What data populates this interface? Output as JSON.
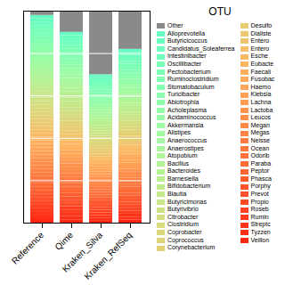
{
  "chart_data": {
    "type": "bar",
    "stacked": true,
    "title": "OTU",
    "categories": [
      "Reference",
      "Qime",
      "Kraken_Silva",
      "Kraken_RefSeq"
    ],
    "series": [
      {
        "name": "Veillon",
        "color": "#ff2613",
        "values": [
          0.01689655172413793,
          0.015517241379310345,
          0.01206896551724138,
          0.01413793103448276
        ]
      },
      {
        "name": "Tyzzen",
        "color": "#ff2f18",
        "values": [
          0.01689655172413793,
          0.015517241379310345,
          0.01206896551724138,
          0.01413793103448276
        ]
      },
      {
        "name": "Streptc",
        "color": "#ff351b",
        "values": [
          0.01689655172413793,
          0.015517241379310345,
          0.01206896551724138,
          0.01413793103448276
        ]
      },
      {
        "name": "Rumin",
        "color": "#ff3b1e",
        "values": [
          0.01689655172413793,
          0.015517241379310345,
          0.01206896551724138,
          0.01413793103448276
        ]
      },
      {
        "name": "Roseb",
        "color": "#ff4121",
        "values": [
          0.01689655172413793,
          0.015517241379310345,
          0.01206896551724138,
          0.01413793103448276
        ]
      },
      {
        "name": "Propio",
        "color": "#ff4a26",
        "values": [
          0.01689655172413793,
          0.015517241379310345,
          0.01206896551724138,
          0.01413793103448276
        ]
      },
      {
        "name": "Prevot",
        "color": "#ff5029",
        "values": [
          0.01689655172413793,
          0.015517241379310345,
          0.01206896551724138,
          0.01413793103448276
        ]
      },
      {
        "name": "Porphy",
        "color": "#ff562c",
        "values": [
          0.01689655172413793,
          0.015517241379310345,
          0.01206896551724138,
          0.01413793103448276
        ]
      },
      {
        "name": "Phasca",
        "color": "#ff5c2f",
        "values": [
          0.01689655172413793,
          0.015517241379310345,
          0.01206896551724138,
          0.01413793103448276
        ]
      },
      {
        "name": "Peptor",
        "color": "#ff6533",
        "values": [
          0.01689655172413793,
          0.015517241379310345,
          0.01206896551724138,
          0.01413793103448276
        ]
      },
      {
        "name": "Paraba",
        "color": "#ff6b37",
        "values": [
          0.01689655172413793,
          0.015517241379310345,
          0.01206896551724138,
          0.01413793103448276
        ]
      },
      {
        "name": "Odorib",
        "color": "#ff703a",
        "values": [
          0.01689655172413793,
          0.015517241379310345,
          0.01206896551724138,
          0.01413793103448276
        ]
      },
      {
        "name": "Ocean",
        "color": "#ff763d",
        "values": [
          0.01689655172413793,
          0.015517241379310345,
          0.01206896551724138,
          0.01413793103448276
        ]
      },
      {
        "name": "Neisse",
        "color": "#ff7b40",
        "values": [
          0.01689655172413793,
          0.015517241379310345,
          0.01206896551724138,
          0.01413793103448276
        ]
      },
      {
        "name": "Megas",
        "color": "#ff8444",
        "values": [
          0.01689655172413793,
          0.015517241379310345,
          0.01206896551724138,
          0.01413793103448276
        ]
      },
      {
        "name": "Megan",
        "color": "#ff8947",
        "values": [
          0.01689655172413793,
          0.015517241379310345,
          0.01206896551724138,
          0.01413793103448276
        ]
      },
      {
        "name": "Leucos",
        "color": "#ff8e4a",
        "values": [
          0.01689655172413793,
          0.015517241379310345,
          0.01206896551724138,
          0.01413793103448276
        ]
      },
      {
        "name": "Lactoba",
        "color": "#ff934d",
        "values": [
          0.01689655172413793,
          0.015517241379310345,
          0.01206896551724138,
          0.01413793103448276
        ]
      },
      {
        "name": "Lachna",
        "color": "#ff9b52",
        "values": [
          0.01689655172413793,
          0.015517241379310345,
          0.01206896551724138,
          0.01413793103448276
        ]
      },
      {
        "name": "Klebsia",
        "color": "#ffa055",
        "values": [
          0.01689655172413793,
          0.015517241379310345,
          0.01206896551724138,
          0.01413793103448276
        ]
      },
      {
        "name": "Haemo",
        "color": "#ffa558",
        "values": [
          0.01689655172413793,
          0.015517241379310345,
          0.01206896551724138,
          0.01413793103448276
        ]
      },
      {
        "name": "Fusobac",
        "color": "#ffa95b",
        "values": [
          0.01689655172413793,
          0.015517241379310345,
          0.01206896551724138,
          0.01413793103448276
        ]
      },
      {
        "name": "Faecali",
        "color": "#ffb05f",
        "values": [
          0.01689655172413793,
          0.015517241379310345,
          0.01206896551724138,
          0.01413793103448276
        ]
      },
      {
        "name": "Eubacte",
        "color": "#feb562",
        "values": [
          0.01689655172413793,
          0.015517241379310345,
          0.01206896551724138,
          0.01413793103448276
        ]
      },
      {
        "name": "Esche",
        "color": "#fab965",
        "values": [
          0.01689655172413793,
          0.015517241379310345,
          0.01206896551724138,
          0.01413793103448276
        ]
      },
      {
        "name": "Entero",
        "color": "#f6be68",
        "values": [
          0.01689655172413793,
          0.015517241379310345,
          0.01206896551724138,
          0.01413793103448276
        ]
      },
      {
        "name": "Entero",
        "color": "#f0c46c",
        "values": [
          0.01689655172413793,
          0.015517241379310345,
          0.01206896551724138,
          0.01413793103448276
        ]
      },
      {
        "name": "Dialiste",
        "color": "#ecc86f",
        "values": [
          0.01689655172413793,
          0.015517241379310345,
          0.01206896551724138,
          0.01413793103448276
        ]
      },
      {
        "name": "Desulfo",
        "color": "#e8cb72",
        "values": [
          0.01689655172413793,
          0.015517241379310345,
          0.01206896551724138,
          0.01413793103448276
        ]
      },
      {
        "name": "Corynebacterium",
        "color": "#e4cf74",
        "values": [
          0.01689655172413793,
          0.015517241379310345,
          0.01206896551724138,
          0.01413793103448276
        ]
      },
      {
        "name": "Coprococcus",
        "color": "#ded579",
        "values": [
          0.01689655172413793,
          0.015517241379310345,
          0.01206896551724138,
          0.01413793103448276
        ]
      },
      {
        "name": "Coprobacter",
        "color": "#dad87b",
        "values": [
          0.01689655172413793,
          0.015517241379310345,
          0.01206896551724138,
          0.01413793103448276
        ]
      },
      {
        "name": "Clostridium",
        "color": "#d6db7e",
        "values": [
          0.01689655172413793,
          0.015517241379310345,
          0.01206896551724138,
          0.01413793103448276
        ]
      },
      {
        "name": "Citrobacter",
        "color": "#d2de81",
        "values": [
          0.01689655172413793,
          0.015517241379310345,
          0.01206896551724138,
          0.01413793103448276
        ]
      },
      {
        "name": "Butyrivibrio",
        "color": "#cce385",
        "values": [
          0.01689655172413793,
          0.015517241379310345,
          0.01206896551724138,
          0.01413793103448276
        ]
      },
      {
        "name": "Butyricimonas",
        "color": "#c8e688",
        "values": [
          0.01689655172413793,
          0.015517241379310345,
          0.01206896551724138,
          0.01413793103448276
        ]
      },
      {
        "name": "Blautia",
        "color": "#c4e88a",
        "values": [
          0.01689655172413793,
          0.015517241379310345,
          0.01206896551724138,
          0.01413793103448276
        ]
      },
      {
        "name": "Bifidobacterium",
        "color": "#c0eb8d",
        "values": [
          0.01689655172413793,
          0.015517241379310345,
          0.01206896551724138,
          0.01413793103448276
        ]
      },
      {
        "name": "Barnesiella",
        "color": "#baee91",
        "values": [
          0.01689655172413793,
          0.015517241379310345,
          0.01206896551724138,
          0.01413793103448276
        ]
      },
      {
        "name": "Bacteroides",
        "color": "#b6f193",
        "values": [
          0.01689655172413793,
          0.015517241379310345,
          0.01206896551724138,
          0.01413793103448276
        ]
      },
      {
        "name": "Bacillus",
        "color": "#b2f396",
        "values": [
          0.01689655172413793,
          0.015517241379310345,
          0.01206896551724138,
          0.01413793103448276
        ]
      },
      {
        "name": "Atopobium",
        "color": "#aef498",
        "values": [
          0.01689655172413793,
          0.015517241379310345,
          0.01206896551724138,
          0.01413793103448276
        ]
      },
      {
        "name": "Anaerostipes",
        "color": "#a8f79c",
        "values": [
          0.01689655172413793,
          0.015517241379310345,
          0.01206896551724138,
          0.01413793103448276
        ]
      },
      {
        "name": "Anaerococcus",
        "color": "#a4f89f",
        "values": [
          0.01689655172413793,
          0.015517241379310345,
          0.01206896551724138,
          0.01413793103448276
        ]
      },
      {
        "name": "Alistipes",
        "color": "#a0faa1",
        "values": [
          0.01689655172413793,
          0.015517241379310345,
          0.01206896551724138,
          0.01413793103448276
        ]
      },
      {
        "name": "Akkermansia",
        "color": "#9cfba4",
        "values": [
          0.01689655172413793,
          0.015517241379310345,
          0.01206896551724138,
          0.01413793103448276
        ]
      },
      {
        "name": "Acidaminococcus",
        "color": "#96fca7",
        "values": [
          0.01689655172413793,
          0.015517241379310345,
          0.01206896551724138,
          0.01413793103448276
        ]
      },
      {
        "name": "Acholeplasma",
        "color": "#92fda9",
        "values": [
          0.01689655172413793,
          0.015517241379310345,
          0.01206896551724138,
          0.01413793103448276
        ]
      },
      {
        "name": "Abiotrophia",
        "color": "#8efeac",
        "values": [
          0.01689655172413793,
          0.015517241379310345,
          0.01206896551724138,
          0.01413793103448276
        ]
      },
      {
        "name": "Turicibacter",
        "color": "#8afeae",
        "values": [
          0.01689655172413793,
          0.015517241379310345,
          0.01206896551724138,
          0.01413793103448276
        ]
      },
      {
        "name": "Stomatobaculum",
        "color": "#84ffb2",
        "values": [
          0.01689655172413793,
          0.015517241379310345,
          0.01206896551724138,
          0.01413793103448276
        ]
      },
      {
        "name": "Ruminoclostridium",
        "color": "#80ffb4",
        "values": [
          0.01689655172413793,
          0.015517241379310345,
          0.01206896551724138,
          0.01413793103448276
        ]
      },
      {
        "name": "Pectobacterium",
        "color": "#7cffb6",
        "values": [
          0.01689655172413793,
          0.015517241379310345,
          0.01206896551724138,
          0.01413793103448276
        ]
      },
      {
        "name": "Oscillibacter",
        "color": "#78ffb8",
        "values": [
          0.01689655172413793,
          0.015517241379310345,
          0.01206896551724138,
          0.01413793103448276
        ]
      },
      {
        "name": "Intestinibacter",
        "color": "#72febb",
        "values": [
          0.01689655172413793,
          0.015517241379310345,
          0.01206896551724138,
          0.01413793103448276
        ]
      },
      {
        "name": "Candidatus_Soleaferrea",
        "color": "#6efebe",
        "values": [
          0.01689655172413793,
          0.015517241379310345,
          0.01206896551724138,
          0.01413793103448276
        ]
      },
      {
        "name": "Butyricicoccus",
        "color": "#6afdc0",
        "values": [
          0.01689655172413793,
          0.015517241379310345,
          0.01206896551724138,
          0.01413793103448276
        ]
      },
      {
        "name": "Alloprevotella",
        "color": "#66fcc2",
        "values": [
          0.01689655172413793,
          0.015517241379310345,
          0.01206896551724138,
          0.01413793103448276
        ]
      },
      {
        "name": "Other",
        "color": "#8a8a8a",
        "values": [
          0.02,
          0.1,
          0.3,
          0.18
        ]
      }
    ],
    "ylim": [
      0,
      1
    ],
    "yticks": [
      0.2,
      0.4,
      0.6,
      0.8,
      1
    ],
    "grid": true,
    "tick_labels": "x",
    "legend": "right"
  }
}
